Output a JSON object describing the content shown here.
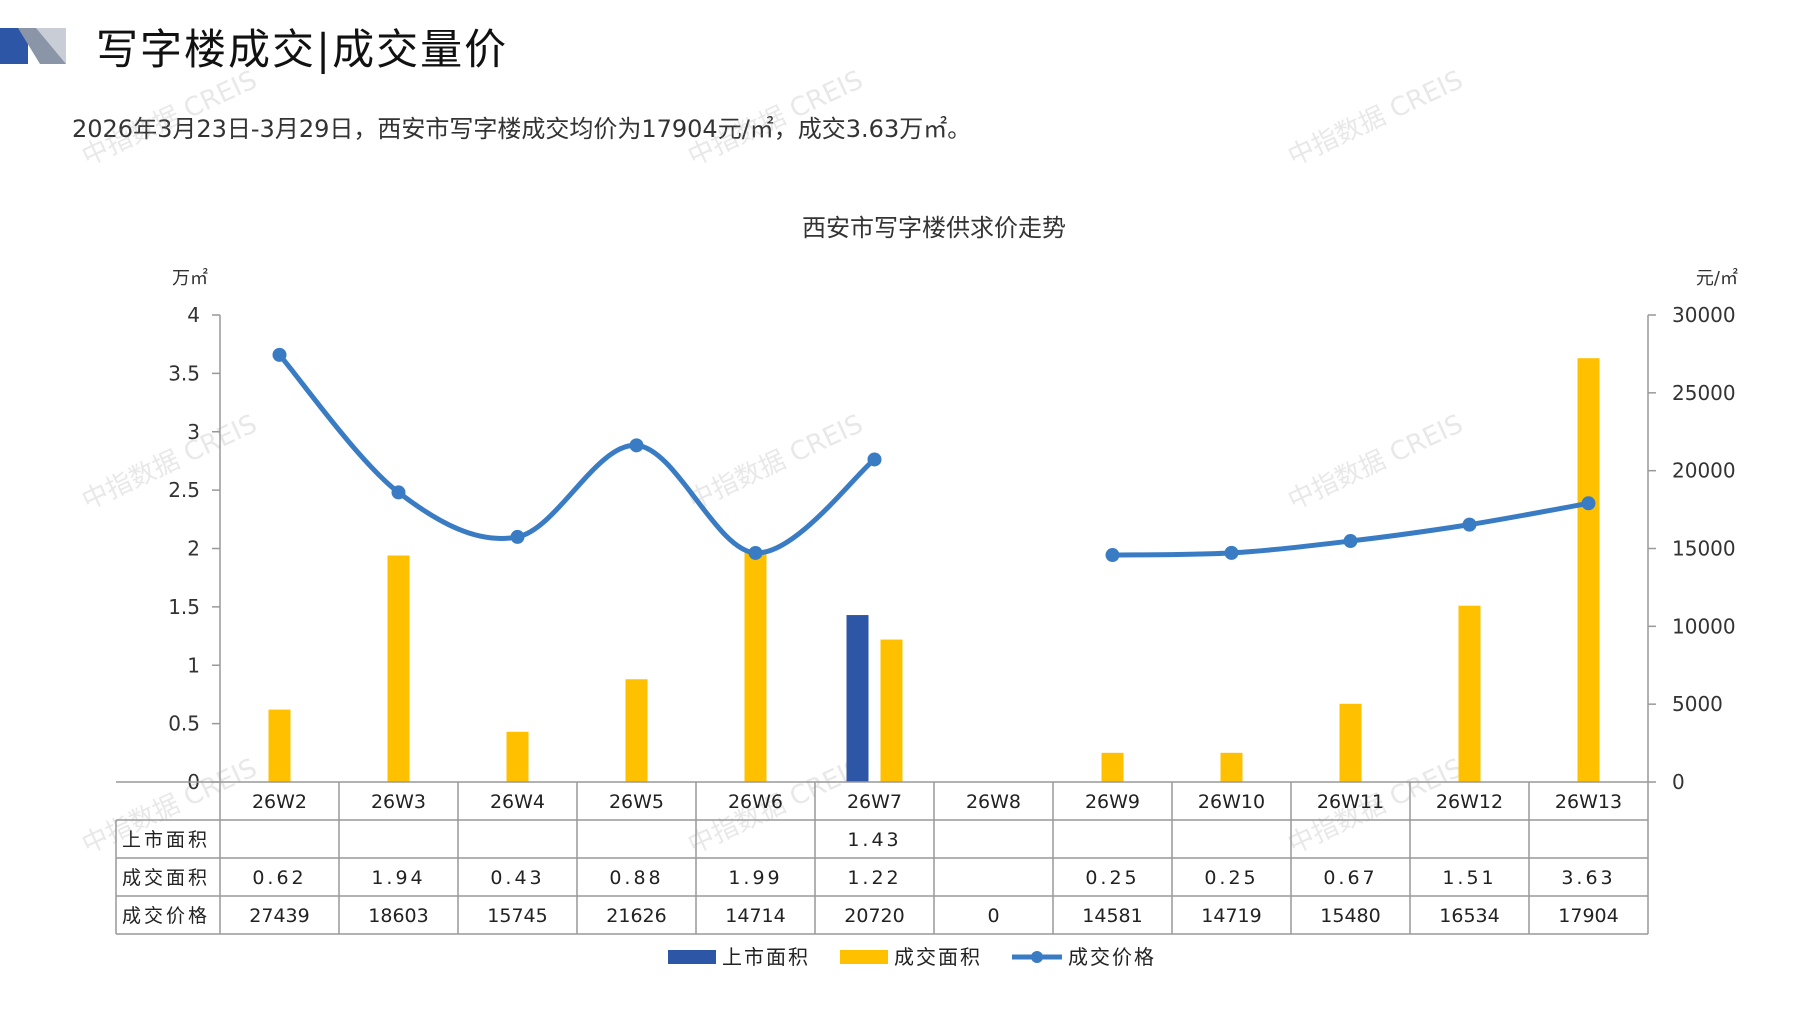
{
  "header": {
    "title": "写字楼成交|成交量价",
    "summary": "2026年3月23日-3月29日，西安市写字楼成交均价为17904元/㎡，成交3.63万㎡。",
    "accent": "#2E56A7"
  },
  "watermark": "中指数据 CREIS",
  "chart_data": {
    "type": "bar",
    "title": "西安市写字楼供求价走势",
    "ylabel": "万㎡",
    "y2label": "元/㎡",
    "ylim": [
      0,
      4
    ],
    "y2lim": [
      0,
      30000
    ],
    "yticks": [
      "0",
      "0.5",
      "1",
      "1.5",
      "2",
      "2.5",
      "3",
      "3.5",
      "4"
    ],
    "y2ticks": [
      "0",
      "5000",
      "10000",
      "15000",
      "20000",
      "25000",
      "30000"
    ],
    "categories": [
      "26W2",
      "26W3",
      "26W4",
      "26W5",
      "26W6",
      "26W7",
      "26W8",
      "26W9",
      "26W10",
      "26W11",
      "26W12",
      "26W13"
    ],
    "series": [
      {
        "name": "上市面积",
        "type": "bar",
        "color": "#2E56A7",
        "values": [
          null,
          null,
          null,
          null,
          null,
          1.43,
          null,
          null,
          null,
          null,
          null,
          null
        ],
        "labels": [
          "",
          "",
          "",
          "",
          "",
          "1.43",
          "",
          "",
          "",
          "",
          "",
          ""
        ]
      },
      {
        "name": "成交面积",
        "type": "bar",
        "color": "#FFC000",
        "values": [
          0.62,
          1.94,
          0.43,
          0.88,
          1.99,
          1.22,
          null,
          0.25,
          0.25,
          0.67,
          1.51,
          3.63
        ],
        "labels": [
          "0.62",
          "1.94",
          "0.43",
          "0.88",
          "1.99",
          "1.22",
          "",
          "0.25",
          "0.25",
          "0.67",
          "1.51",
          "3.63"
        ]
      },
      {
        "name": "成交价格",
        "type": "line",
        "axis": "right",
        "color": "#3A7CC4",
        "values": [
          27439,
          18603,
          15745,
          21626,
          14714,
          20720,
          0,
          14581,
          14719,
          15480,
          16534,
          17904
        ],
        "labels": [
          "27439",
          "18603",
          "15745",
          "21626",
          "14714",
          "20720",
          "0",
          "14581",
          "14719",
          "15480",
          "16534",
          "17904"
        ]
      }
    ],
    "table_rows": [
      "上市面积",
      "成交面积",
      "成交价格"
    ],
    "legend": "bottom"
  }
}
